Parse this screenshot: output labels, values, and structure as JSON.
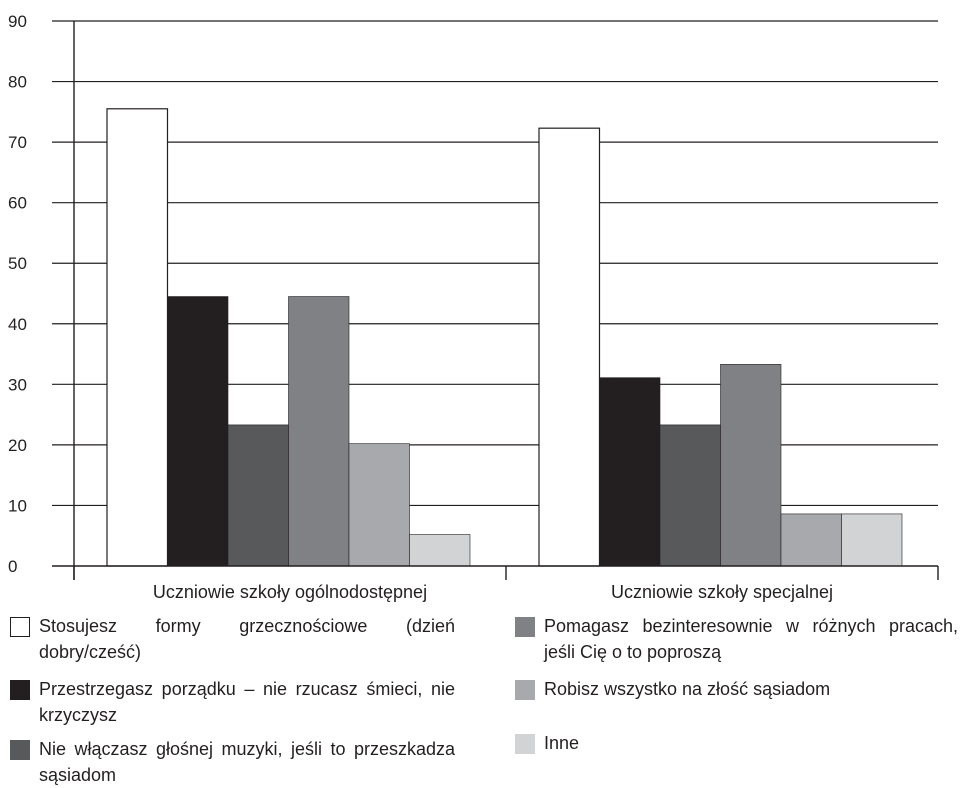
{
  "chart_data": {
    "type": "bar",
    "categories": [
      "Uczniowie szkoły ogólnodostępnej",
      "Uczniowie szkoły specjalnej"
    ],
    "ylim": [
      0,
      90
    ],
    "yticks": [
      0,
      10,
      20,
      30,
      40,
      50,
      60,
      70,
      80,
      90
    ],
    "grid": true,
    "legend_position": "bottom",
    "series": [
      {
        "name": "Stosujesz formy grzecznościowe (dzień dobry/cześć)",
        "color": "#ffffff",
        "values": [
          75.5,
          72.3
        ]
      },
      {
        "name": "Przestrzegasz porządku – nie rzucasz śmieci, nie krzyczysz",
        "color": "#231f20",
        "values": [
          44.5,
          31.1
        ]
      },
      {
        "name": "Nie włączasz głośnej muzyki, jeśli to przeszkadza sąsiadom",
        "color": "#58595b",
        "values": [
          23.3,
          23.3
        ]
      },
      {
        "name": "Pomagasz bezinteresownie w różnych pracach, jeśli Cię o to poproszą",
        "color": "#808184",
        "values": [
          44.5,
          33.3
        ]
      },
      {
        "name": "Robisz wszystko na złość sąsiadom",
        "color": "#a7a9ac",
        "values": [
          20.2,
          8.6
        ]
      },
      {
        "name": "Inne",
        "color": "#d1d3d4",
        "values": [
          5.2,
          8.6
        ]
      }
    ]
  }
}
